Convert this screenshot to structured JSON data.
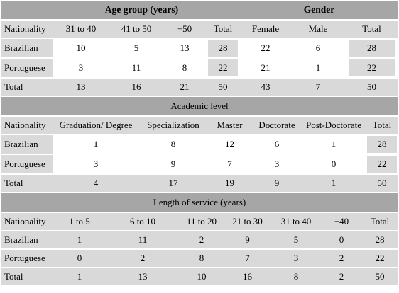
{
  "section1": {
    "group_header_age": "Age group (years)",
    "group_header_gender": "Gender",
    "columns": [
      "Nationality",
      "31 to 40",
      "41 to 50",
      "+50",
      "Total",
      "Female",
      "Male",
      "Total"
    ],
    "rows": [
      {
        "label": "Brazilian",
        "values": [
          "10",
          "5",
          "13",
          "28",
          "22",
          "6",
          "28"
        ]
      },
      {
        "label": "Portuguese",
        "values": [
          "3",
          "11",
          "8",
          "22",
          "21",
          "1",
          "22"
        ]
      }
    ],
    "total": {
      "label": "Total",
      "values": [
        "13",
        "16",
        "21",
        "50",
        "43",
        "7",
        "50"
      ]
    }
  },
  "section2": {
    "title": "Academic level",
    "columns": [
      "Nationality",
      "Graduation/ Degree",
      "Specialization",
      "Master",
      "Doctorate",
      "Post-Doctorate",
      "Total"
    ],
    "rows": [
      {
        "label": "Brazilian",
        "values": [
          "1",
          "8",
          "12",
          "6",
          "1",
          "28"
        ]
      },
      {
        "label": "Portuguese",
        "values": [
          "3",
          "9",
          "7",
          "3",
          "0",
          "22"
        ]
      }
    ],
    "total": {
      "label": "Total",
      "values": [
        "4",
        "17",
        "19",
        "9",
        "1",
        "50"
      ]
    }
  },
  "section3": {
    "title": "Length of service (years)",
    "columns": [
      "Nationality",
      "1 to 5",
      "6 to 10",
      "11 to 20",
      "21 to 30",
      "31 to 40",
      "+40",
      "Total"
    ],
    "rows": [
      {
        "label": "Brazilian",
        "values": [
          "1",
          "11",
          "2",
          "9",
          "5",
          "0",
          "28"
        ]
      },
      {
        "label": "Portuguese",
        "values": [
          "0",
          "2",
          "8",
          "7",
          "3",
          "2",
          "22"
        ]
      }
    ],
    "total": {
      "label": "Total",
      "values": [
        "1",
        "13",
        "10",
        "16",
        "8",
        "2",
        "50"
      ]
    }
  }
}
